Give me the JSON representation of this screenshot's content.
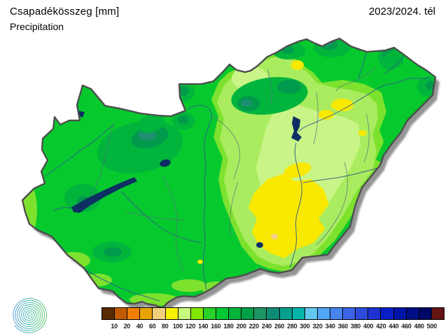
{
  "header": {
    "title_primary": "Csapadékösszeg [mm]",
    "title_secondary": "Precipitation",
    "period": "2023/2024. tél"
  },
  "legend": {
    "unit": "mm",
    "tick_labels": [
      "10",
      "20",
      "40",
      "60",
      "80",
      "100",
      "120",
      "140",
      "160",
      "180",
      "200",
      "220",
      "240",
      "260",
      "280",
      "300",
      "320",
      "340",
      "360",
      "380",
      "400",
      "420",
      "440",
      "460",
      "480",
      "500"
    ],
    "cell_colors": [
      "#5A2A00",
      "#C25A00",
      "#F07E00",
      "#E9A400",
      "#F2CF7D",
      "#F8F100",
      "#C8F87C",
      "#82E600",
      "#28D228",
      "#00C832",
      "#00B43C",
      "#00A046",
      "#1E9664",
      "#0F8C78",
      "#00A08C",
      "#00B4AA",
      "#64C8F0",
      "#50A5F5",
      "#4684F0",
      "#3C64E6",
      "#2D4BDC",
      "#1E32D2",
      "#0A1EC8",
      "#0014A5",
      "#000E87",
      "#000866",
      "#651414"
    ]
  },
  "map_colors": {
    "base_green": "#06C92E",
    "light_green": "#7DE22E",
    "pale_green": "#AAEC5F",
    "palest_green": "#C9F487",
    "yellow": "#F9E800",
    "tan": "#F2CF84",
    "medium_green": "#00B43C",
    "dark_green": "#009A4C",
    "teal_green": "#1E8F70",
    "lake_navy": "#0E2F63",
    "border_gray": "#4C4C4C"
  },
  "logo": {
    "icon": "spiral-logo",
    "gradient": [
      "#4A8FD0",
      "#2FB3A8",
      "#52C25A"
    ]
  }
}
